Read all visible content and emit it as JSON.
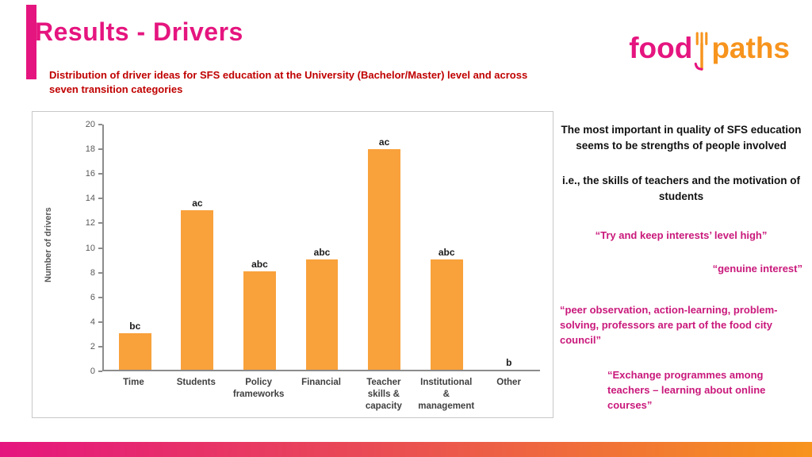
{
  "slide": {
    "title": "Results - Drivers",
    "subtitle": "Distribution of driver ideas for SFS education at the University (Bachelor/Master) level and across seven transition categories",
    "logo_food": "food",
    "logo_paths": "paths"
  },
  "chart_data": {
    "type": "bar",
    "title": "",
    "xlabel": "",
    "ylabel": "Number of drivers",
    "ylim": [
      0,
      20
    ],
    "ytick_step": 2,
    "grid": false,
    "legend": false,
    "categories": [
      "Time",
      "Students",
      "Policy frameworks",
      "Financial",
      "Teacher skills & capacity",
      "Institutional & management",
      "Other"
    ],
    "values": [
      3,
      13,
      8,
      9,
      18,
      9,
      0
    ],
    "bar_labels": [
      "bc",
      "ac",
      "abc",
      "abc",
      "ac",
      "abc",
      "b"
    ],
    "bar_color": "#F9A13B"
  },
  "notes": {
    "n1": "The most important in quality of SFS education seems to be strengths of people involved",
    "n2": "i.e., the skills of teachers and the motivation of students",
    "q1": "“Try and keep interests’ level high”",
    "q2": "“genuine interest”",
    "q3": "“peer observation, action-learning, problem-solving, professors are part of the food city council”",
    "q4": "“Exchange programmes among teachers – learning about online courses”"
  },
  "colors": {
    "title_pink": "#E5157F",
    "subtitle_red": "#C00000",
    "quote_pink": "#C9197B",
    "bar_orange": "#F9A13B",
    "gradient_start": "#E5157F",
    "gradient_end": "#F7941D"
  }
}
